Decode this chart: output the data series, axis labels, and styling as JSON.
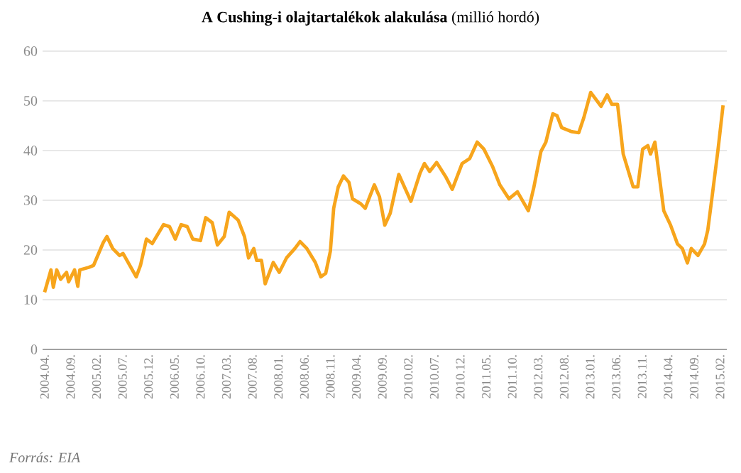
{
  "chart_data": {
    "type": "line",
    "title": "**A Cushing-i olajtartalékok alakulása** (millió hordó)",
    "annotations": [
      "Forrás: EIA"
    ],
    "x": [
      "2004-04-01",
      "2004-05-08",
      "2004-05-22",
      "2004-06-11",
      "2004-07-04",
      "2004-08-08",
      "2004-08-20",
      "2004-09-24",
      "2004-10-13",
      "2004-10-25",
      "2004-12-16",
      "2005-01-14",
      "2005-03-10",
      "2005-04-01",
      "2005-05-04",
      "2005-06-14",
      "2005-07-04",
      "2005-09-20",
      "2005-10-15",
      "2005-11-19",
      "2005-12-23",
      "2006-02-26",
      "2006-04-02",
      "2006-05-06",
      "2006-06-09",
      "2006-07-15",
      "2006-08-17",
      "2006-10-01",
      "2006-11-01",
      "2006-12-09",
      "2007-01-09",
      "2007-02-17",
      "2007-03-17",
      "2007-05-09",
      "2007-06-15",
      "2007-07-09",
      "2007-08-09",
      "2007-08-26",
      "2007-09-23",
      "2007-10-15",
      "2007-12-01",
      "2008-01-06",
      "2008-02-17",
      "2008-04-06",
      "2008-05-06",
      "2008-06-15",
      "2008-08-04",
      "2008-09-06",
      "2008-10-04",
      "2008-11-01",
      "2008-11-20",
      "2008-12-17",
      "2009-01-17",
      "2009-02-17",
      "2009-03-09",
      "2009-04-26",
      "2009-05-23",
      "2009-07-15",
      "2009-08-15",
      "2009-09-15",
      "2009-10-17",
      "2009-12-06",
      "2010-02-15",
      "2010-04-09",
      "2010-05-04",
      "2010-06-04",
      "2010-07-15",
      "2010-09-09",
      "2010-10-15",
      "2010-12-12",
      "2011-01-26",
      "2011-03-09",
      "2011-04-17",
      "2011-06-06",
      "2011-07-20",
      "2011-09-12",
      "2011-11-01",
      "2012-01-04",
      "2012-02-06",
      "2012-03-17",
      "2012-04-15",
      "2012-05-26",
      "2012-06-20",
      "2012-07-17",
      "2012-09-15",
      "2012-10-26",
      "2012-11-23",
      "2013-01-04",
      "2013-03-04",
      "2013-04-09",
      "2013-05-06",
      "2013-06-09",
      "2013-07-12",
      "2013-09-09",
      "2013-10-06",
      "2013-11-04",
      "2013-12-04",
      "2013-12-20",
      "2014-01-15",
      "2014-03-06",
      "2014-04-15",
      "2014-05-26",
      "2014-06-23",
      "2014-07-23",
      "2014-08-15",
      "2014-09-23",
      "2014-11-01",
      "2014-11-20",
      "2014-12-17",
      "2015-01-20",
      "2015-02-17"
    ],
    "series": [
      {
        "color": "#f7a51c",
        "values": [
          11.5,
          16,
          12.5,
          16,
          14.1,
          15.5,
          13.6,
          16,
          12.7,
          16,
          16.5,
          16.9,
          21.5,
          22.7,
          20.3,
          18.9,
          19.3,
          14.6,
          16.9,
          22.2,
          21.3,
          25.1,
          24.7,
          22.2,
          25.1,
          24.7,
          22.2,
          21.9,
          26.5,
          25.5,
          21,
          22.7,
          27.6,
          26,
          22.7,
          18.4,
          20.3,
          17.9,
          17.9,
          13.2,
          17.5,
          15.5,
          18.4,
          20.3,
          21.7,
          20.3,
          17.5,
          14.6,
          15.3,
          19.8,
          28.4,
          32.7,
          34.9,
          33.6,
          30.3,
          29.3,
          28.4,
          33.1,
          30.7,
          25,
          27.4,
          35.2,
          29.8,
          35.5,
          37.4,
          35.8,
          37.6,
          34.6,
          32.2,
          37.4,
          38.4,
          41.7,
          40.3,
          36.9,
          33.1,
          30.3,
          31.7,
          27.9,
          32.7,
          39.8,
          41.7,
          47.4,
          47,
          44.6,
          43.8,
          43.6,
          46.5,
          51.7,
          48.9,
          51.2,
          49.3,
          49.3,
          39.3,
          32.7,
          32.7,
          40.3,
          41,
          39.3,
          41.7,
          27.9,
          25,
          21.2,
          20.3,
          17.4,
          20.3,
          18.9,
          21.2,
          24,
          31.2,
          40.3,
          49.1
        ]
      }
    ],
    "xlim": [
      "2004-03-20",
      "2015-03-10"
    ],
    "xticks": [
      {
        "value": "2004-04",
        "label": "2004.04."
      },
      {
        "value": "2004-09",
        "label": "2004.09."
      },
      {
        "value": "2005-02",
        "label": "2005.02."
      },
      {
        "value": "2005-07",
        "label": "2005.07."
      },
      {
        "value": "2005-12",
        "label": "2005.12."
      },
      {
        "value": "2006-05",
        "label": "2006.05."
      },
      {
        "value": "2006-10",
        "label": "2006.10."
      },
      {
        "value": "2007-03",
        "label": "2007.03."
      },
      {
        "value": "2007-08",
        "label": "2007.08."
      },
      {
        "value": "2008-01",
        "label": "2008.01."
      },
      {
        "value": "2008-06",
        "label": "2008.06."
      },
      {
        "value": "2008-11",
        "label": "2008.11."
      },
      {
        "value": "2009-04",
        "label": "2009.04."
      },
      {
        "value": "2009-09",
        "label": "2009.09."
      },
      {
        "value": "2010-02",
        "label": "2010.02."
      },
      {
        "value": "2010-07",
        "label": "2010.07."
      },
      {
        "value": "2010-12",
        "label": "2010.12."
      },
      {
        "value": "2011-05",
        "label": "2011.05."
      },
      {
        "value": "2011-10",
        "label": "2011.10."
      },
      {
        "value": "2012-03",
        "label": "2012.03."
      },
      {
        "value": "2012-08",
        "label": "2012.08."
      },
      {
        "value": "2013-01",
        "label": "2013.01."
      },
      {
        "value": "2013-06",
        "label": "2013.06."
      },
      {
        "value": "2013-11",
        "label": "2013.11."
      },
      {
        "value": "2014-04",
        "label": "2014.04."
      },
      {
        "value": "2014-09",
        "label": "2014.09."
      },
      {
        "value": "2015-02",
        "label": "2015.02."
      }
    ],
    "ylim": [
      0,
      60
    ],
    "yticks": [
      0,
      10,
      20,
      30,
      40,
      50,
      60
    ],
    "grid": "y",
    "marker": "none",
    "line_style": "solid"
  }
}
